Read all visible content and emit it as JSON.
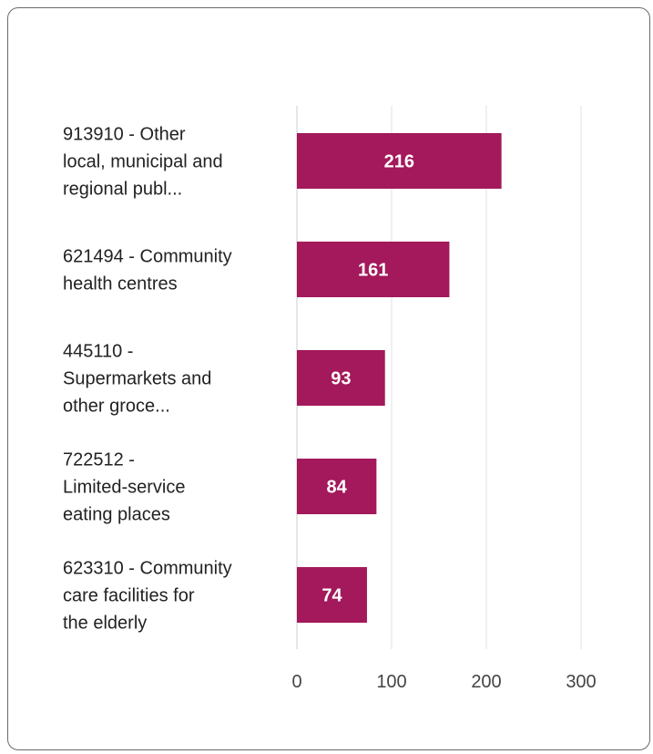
{
  "chart_data": {
    "type": "bar",
    "orientation": "horizontal",
    "categories": [
      [
        "913910 - Other",
        "local, municipal and",
        "regional publ..."
      ],
      [
        "621494 - Community",
        "health centres"
      ],
      [
        "445110 -",
        "Supermarkets and",
        "other groce..."
      ],
      [
        "722512 -",
        "Limited-service",
        "eating places"
      ],
      [
        "623310 - Community",
        "care facilities for",
        "the elderly"
      ]
    ],
    "values": [
      216,
      161,
      93,
      84,
      74
    ],
    "data_labels": [
      "216",
      "161",
      "93",
      "84",
      "74"
    ],
    "xlim": [
      0,
      300
    ],
    "x_ticks": [
      0,
      100,
      200,
      300
    ],
    "x_tick_labels": [
      "0",
      "100",
      "200",
      "300"
    ],
    "grid": true,
    "legend": "none",
    "colors": {
      "bar": "#A3195B",
      "grid": "#e2e2e2",
      "axis": "#cccccc"
    }
  }
}
